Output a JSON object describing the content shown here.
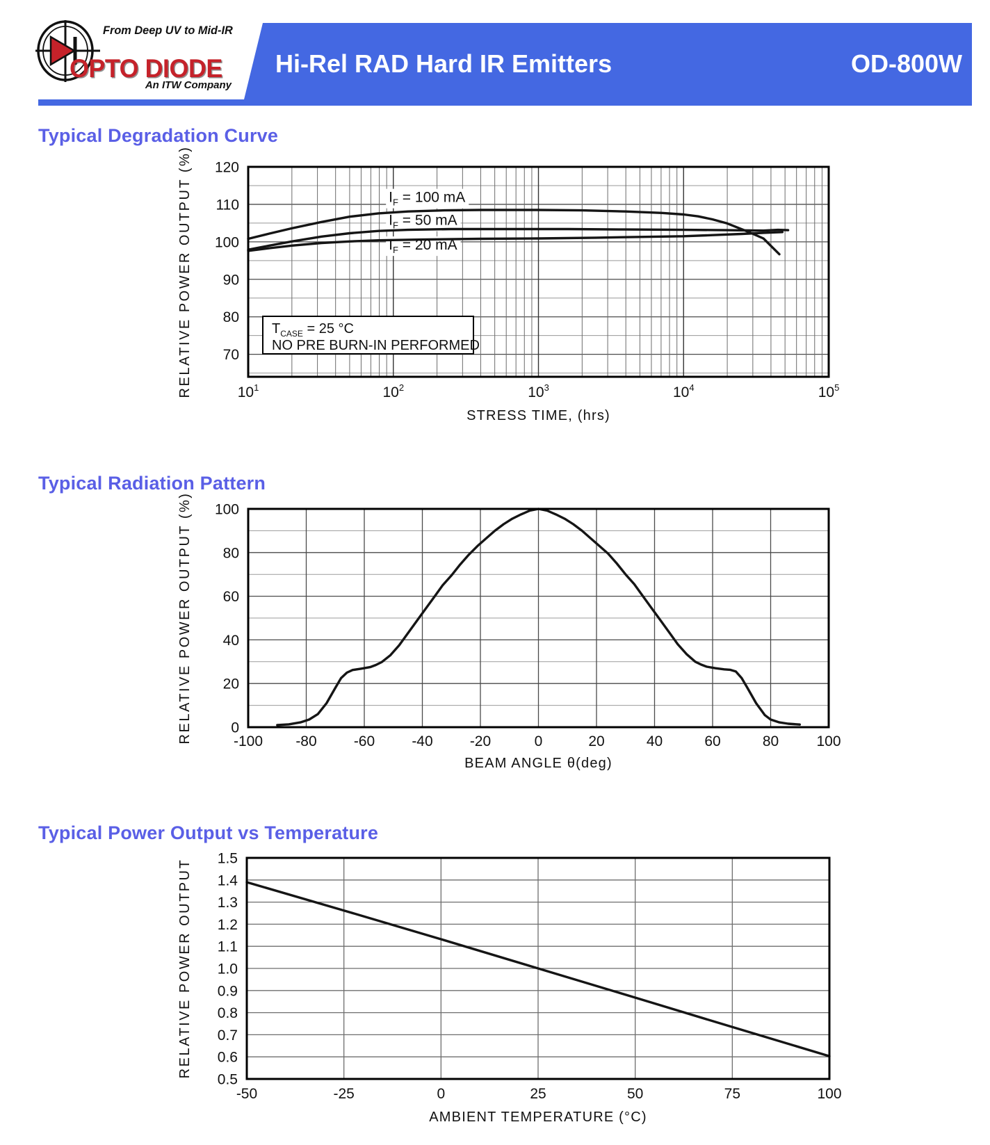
{
  "header": {
    "tagline": "From Deep UV to Mid-IR",
    "brand": "OPTO DIODE",
    "brand_sub": "An ITW Company",
    "title": "Hi-Rel RAD Hard IR Emitters",
    "part_number": "OD-800W",
    "banner_color": "#4468E2",
    "brand_color": "#C5222A",
    "heading_color": "#5A5FE6"
  },
  "sections": [
    {
      "heading": "Typical Degradation Curve"
    },
    {
      "heading": "Typical Radiation Pattern"
    },
    {
      "heading": "Typical Power Output vs Temperature"
    }
  ],
  "chart_data": [
    {
      "type": "line",
      "title": "Typical Degradation Curve",
      "x_scale": "log",
      "xlabel": "STRESS TIME, (hrs)",
      "ylabel": "RELATIVE POWER OUTPUT (%)",
      "xlim": [
        10,
        100000
      ],
      "ylim": [
        64,
        120
      ],
      "x_ticks": [
        {
          "v": 10,
          "label": "10",
          "sup": "1"
        },
        {
          "v": 100,
          "label": "10",
          "sup": "2"
        },
        {
          "v": 1000,
          "label": "10",
          "sup": "3"
        },
        {
          "v": 10000,
          "label": "10",
          "sup": "4"
        },
        {
          "v": 100000,
          "label": "10",
          "sup": "5"
        }
      ],
      "y_ticks": [
        {
          "v": 70,
          "label": "70"
        },
        {
          "v": 80,
          "label": "80"
        },
        {
          "v": 90,
          "label": "90"
        },
        {
          "v": 100,
          "label": "100"
        },
        {
          "v": 110,
          "label": "110"
        },
        {
          "v": 120,
          "label": "120"
        }
      ],
      "y_grid_major": [
        70,
        80,
        90,
        100,
        110
      ],
      "y_grid_minor": [
        65,
        75,
        85,
        95,
        105,
        115
      ],
      "x_grid": "log-decades",
      "grid_on": true,
      "legend_position": "inline-labels",
      "annotation": {
        "lines": [
          [
            {
              "t": "T"
            },
            {
              "t": "CASE",
              "s": "sub"
            },
            {
              "t": " = 25 °C"
            }
          ],
          [
            {
              "t": "NO PRE BURN-IN PERFORMED"
            }
          ]
        ]
      },
      "series": [
        {
          "name": "IF = 100 mA",
          "label_parts": [
            {
              "t": "I"
            },
            {
              "t": "F",
              "s": "sub"
            },
            {
              "t": " = 100 mA"
            }
          ],
          "label_anchor": [
            93,
            112.0
          ],
          "points": [
            [
              10,
              100.8
            ],
            [
              14,
              102.2
            ],
            [
              20,
              103.6
            ],
            [
              32,
              105.3
            ],
            [
              50,
              106.7
            ],
            [
              79,
              107.6
            ],
            [
              126,
              108.1
            ],
            [
              224,
              108.4
            ],
            [
              400,
              108.5
            ],
            [
              1000,
              108.5
            ],
            [
              2000,
              108.4
            ],
            [
              4000,
              108.1
            ],
            [
              7100,
              107.7
            ],
            [
              10000,
              107.3
            ],
            [
              12600,
              106.8
            ],
            [
              15800,
              106.0
            ],
            [
              20000,
              104.9
            ],
            [
              28200,
              102.6
            ],
            [
              35500,
              100.9
            ],
            [
              45700,
              96.7
            ]
          ]
        },
        {
          "name": "IF = 50 mA",
          "label_parts": [
            {
              "t": "I"
            },
            {
              "t": "F",
              "s": "sub"
            },
            {
              "t": " = 50 mA"
            }
          ],
          "label_anchor": [
            93,
            105.9
          ],
          "points": [
            [
              10,
              97.9
            ],
            [
              14,
              99.0
            ],
            [
              20,
              100.1
            ],
            [
              32,
              101.4
            ],
            [
              50,
              102.3
            ],
            [
              79,
              102.9
            ],
            [
              126,
              103.2
            ],
            [
              250,
              103.4
            ],
            [
              630,
              103.4
            ],
            [
              1600,
              103.4
            ],
            [
              4000,
              103.3
            ],
            [
              10000,
              103.2
            ],
            [
              20000,
              103.1
            ],
            [
              35500,
              103.0
            ],
            [
              44700,
              103.2
            ],
            [
              52500,
              103.1
            ]
          ]
        },
        {
          "name": "IF = 20 mA",
          "label_parts": [
            {
              "t": "I"
            },
            {
              "t": "F",
              "s": "sub"
            },
            {
              "t": " = 20 mA"
            }
          ],
          "label_anchor": [
            93,
            99.3
          ],
          "points": [
            [
              10,
              97.6
            ],
            [
              14,
              98.3
            ],
            [
              20,
              99.0
            ],
            [
              32,
              99.7
            ],
            [
              50,
              100.1
            ],
            [
              79,
              100.4
            ],
            [
              158,
              100.6
            ],
            [
              400,
              100.8
            ],
            [
              1000,
              100.9
            ],
            [
              2500,
              101.1
            ],
            [
              5000,
              101.3
            ],
            [
              10000,
              101.5
            ],
            [
              15800,
              101.8
            ],
            [
              25100,
              102.1
            ],
            [
              35500,
              102.4
            ],
            [
              47900,
              102.6
            ]
          ]
        }
      ]
    },
    {
      "type": "line",
      "title": "Typical Radiation Pattern",
      "x_scale": "linear",
      "xlabel": "BEAM ANGLE θ(deg)",
      "ylabel": "RELATIVE POWER OUTPUT (%)",
      "xlim": [
        -100,
        100
      ],
      "ylim": [
        0,
        100
      ],
      "x_ticks": [
        {
          "v": -100,
          "label": "-100"
        },
        {
          "v": -80,
          "label": "-80"
        },
        {
          "v": -60,
          "label": "-60"
        },
        {
          "v": -40,
          "label": "-40"
        },
        {
          "v": -20,
          "label": "-20"
        },
        {
          "v": 0,
          "label": "0"
        },
        {
          "v": 20,
          "label": "20"
        },
        {
          "v": 40,
          "label": "40"
        },
        {
          "v": 60,
          "label": "60"
        },
        {
          "v": 80,
          "label": "80"
        },
        {
          "v": 100,
          "label": "100"
        }
      ],
      "y_ticks": [
        {
          "v": 0,
          "label": "0"
        },
        {
          "v": 20,
          "label": "20"
        },
        {
          "v": 40,
          "label": "40"
        },
        {
          "v": 60,
          "label": "60"
        },
        {
          "v": 80,
          "label": "80"
        },
        {
          "v": 100,
          "label": "100"
        }
      ],
      "y_grid_major": [
        20,
        40,
        60,
        80
      ],
      "y_grid_minor": [
        10,
        30,
        50,
        70,
        90
      ],
      "x_grid": [
        -80,
        -60,
        -40,
        -20,
        0,
        20,
        40,
        60,
        80
      ],
      "grid_on": true,
      "series": [
        {
          "name": "radiation pattern",
          "points": [
            [
              -90,
              1
            ],
            [
              -86,
              1.3
            ],
            [
              -82,
              2.2
            ],
            [
              -79,
              3.5
            ],
            [
              -76,
              6
            ],
            [
              -73,
              11
            ],
            [
              -70,
              18
            ],
            [
              -68,
              22.5
            ],
            [
              -66,
              25
            ],
            [
              -64,
              26.2
            ],
            [
              -61,
              26.8
            ],
            [
              -58,
              27.5
            ],
            [
              -56,
              28.5
            ],
            [
              -54,
              29.8
            ],
            [
              -51,
              33
            ],
            [
              -48,
              37.5
            ],
            [
              -45,
              43
            ],
            [
              -42,
              48.5
            ],
            [
              -39,
              54
            ],
            [
              -36,
              59.5
            ],
            [
              -33,
              65
            ],
            [
              -30,
              69.5
            ],
            [
              -27,
              74.5
            ],
            [
              -24,
              79
            ],
            [
              -21,
              83
            ],
            [
              -18,
              86.5
            ],
            [
              -15,
              90
            ],
            [
              -12,
              93
            ],
            [
              -9,
              95.5
            ],
            [
              -6,
              97.5
            ],
            [
              -3,
              99.2
            ],
            [
              0,
              100
            ],
            [
              3,
              99.2
            ],
            [
              6,
              97.5
            ],
            [
              9,
              95.5
            ],
            [
              12,
              93
            ],
            [
              15,
              90
            ],
            [
              18,
              86.5
            ],
            [
              21,
              83
            ],
            [
              24,
              79.5
            ],
            [
              27,
              75
            ],
            [
              30,
              70
            ],
            [
              33,
              65.5
            ],
            [
              36,
              60
            ],
            [
              39,
              54.5
            ],
            [
              42,
              49
            ],
            [
              45,
              43.5
            ],
            [
              48,
              38
            ],
            [
              51,
              33.5
            ],
            [
              54,
              30
            ],
            [
              56,
              28.7
            ],
            [
              58,
              27.7
            ],
            [
              61,
              27
            ],
            [
              64,
              26.5
            ],
            [
              66,
              26.3
            ],
            [
              68,
              25.5
            ],
            [
              70,
              22.5
            ],
            [
              72,
              18
            ],
            [
              75,
              11
            ],
            [
              78,
              5.5
            ],
            [
              80,
              3.5
            ],
            [
              83,
              2.2
            ],
            [
              86,
              1.6
            ],
            [
              90,
              1.2
            ]
          ]
        }
      ]
    },
    {
      "type": "line",
      "title": "Typical Power Output vs Temperature",
      "x_scale": "linear",
      "xlabel": "AMBIENT TEMPERATURE (°C)",
      "ylabel": "RELATIVE POWER OUTPUT",
      "xlim": [
        -50,
        100
      ],
      "ylim": [
        0.5,
        1.5
      ],
      "x_ticks": [
        {
          "v": -50,
          "label": "-50"
        },
        {
          "v": -25,
          "label": "-25"
        },
        {
          "v": 0,
          "label": "0"
        },
        {
          "v": 25,
          "label": "25"
        },
        {
          "v": 50,
          "label": "50"
        },
        {
          "v": 75,
          "label": "75"
        },
        {
          "v": 100,
          "label": "100"
        }
      ],
      "y_ticks": [
        {
          "v": 0.5,
          "label": "0.5"
        },
        {
          "v": 0.6,
          "label": "0.6"
        },
        {
          "v": 0.7,
          "label": "0.7"
        },
        {
          "v": 0.8,
          "label": "0.8"
        },
        {
          "v": 0.9,
          "label": "0.9"
        },
        {
          "v": 1.0,
          "label": "1.0"
        },
        {
          "v": 1.1,
          "label": "1.1"
        },
        {
          "v": 1.2,
          "label": "1.2"
        },
        {
          "v": 1.3,
          "label": "1.3"
        },
        {
          "v": 1.4,
          "label": "1.4"
        },
        {
          "v": 1.5,
          "label": "1.5"
        }
      ],
      "y_grid_major": [
        0.6,
        0.7,
        0.8,
        0.9,
        1.0,
        1.1,
        1.2,
        1.3,
        1.4
      ],
      "y_grid_minor": [],
      "x_grid": [
        -25,
        0,
        25,
        50,
        75
      ],
      "grid_on": true,
      "series": [
        {
          "name": "relative power output",
          "points": [
            [
              -50,
              1.39
            ],
            [
              -25,
              1.262
            ],
            [
              0,
              1.132
            ],
            [
              25,
              1.0
            ],
            [
              50,
              0.868
            ],
            [
              75,
              0.735
            ],
            [
              100,
              0.603
            ]
          ]
        }
      ]
    }
  ]
}
